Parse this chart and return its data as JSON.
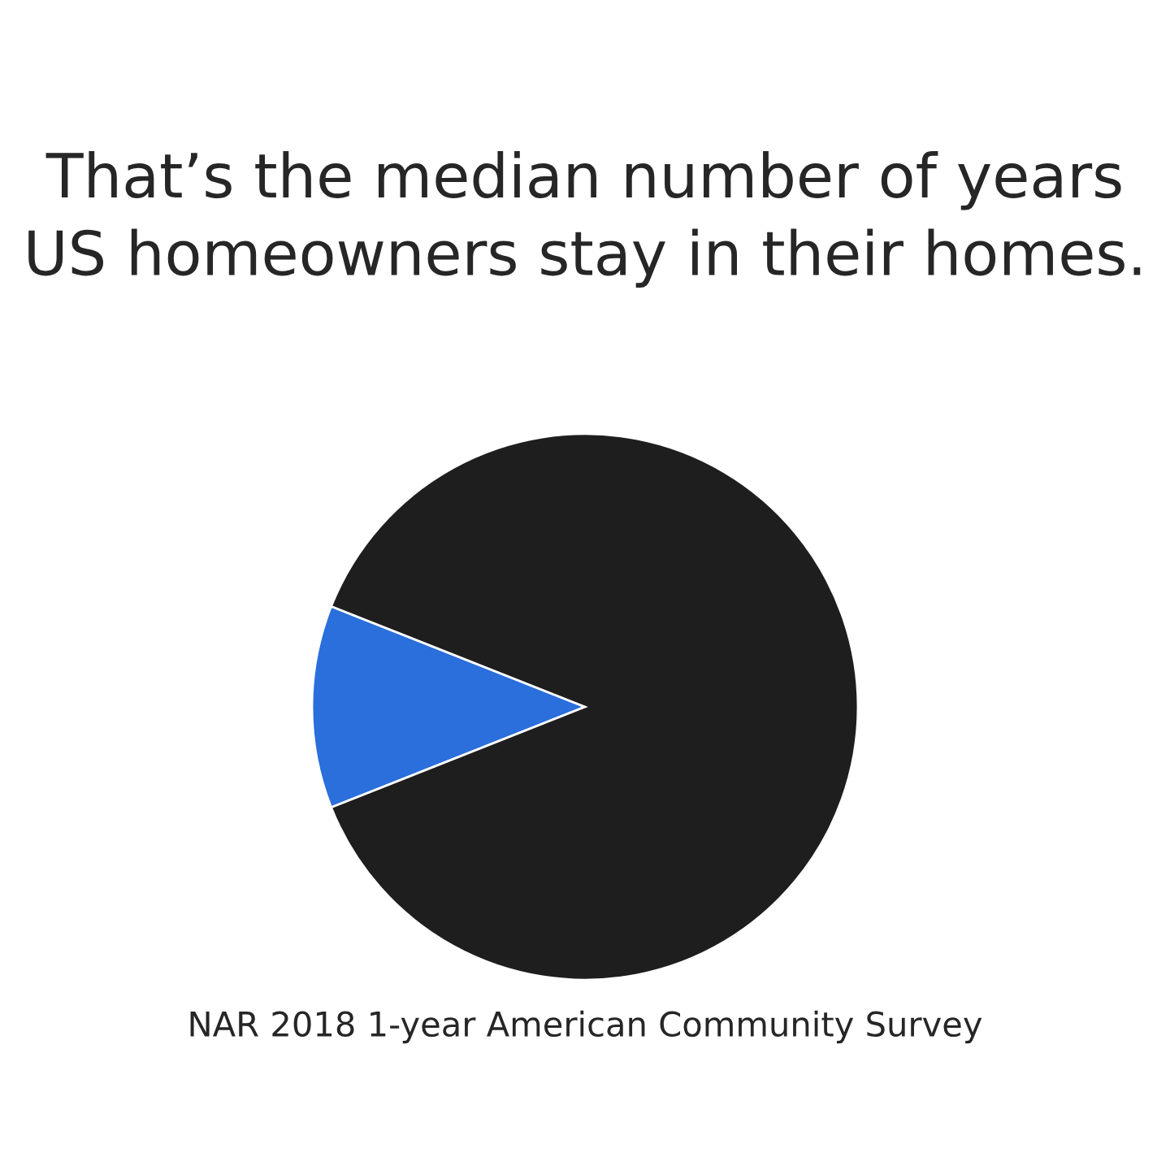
{
  "chart_data": {
    "type": "pie",
    "title": "That’s the median number of years US homeowners stay in their homes.",
    "categories": [
      null,
      null
    ],
    "values": [
      12,
      88
    ],
    "colors": [
      "#2a6fdb",
      "#1e1e1e"
    ],
    "annotations": [
      "NAR 2018 1-year American Community Survey"
    ]
  }
}
